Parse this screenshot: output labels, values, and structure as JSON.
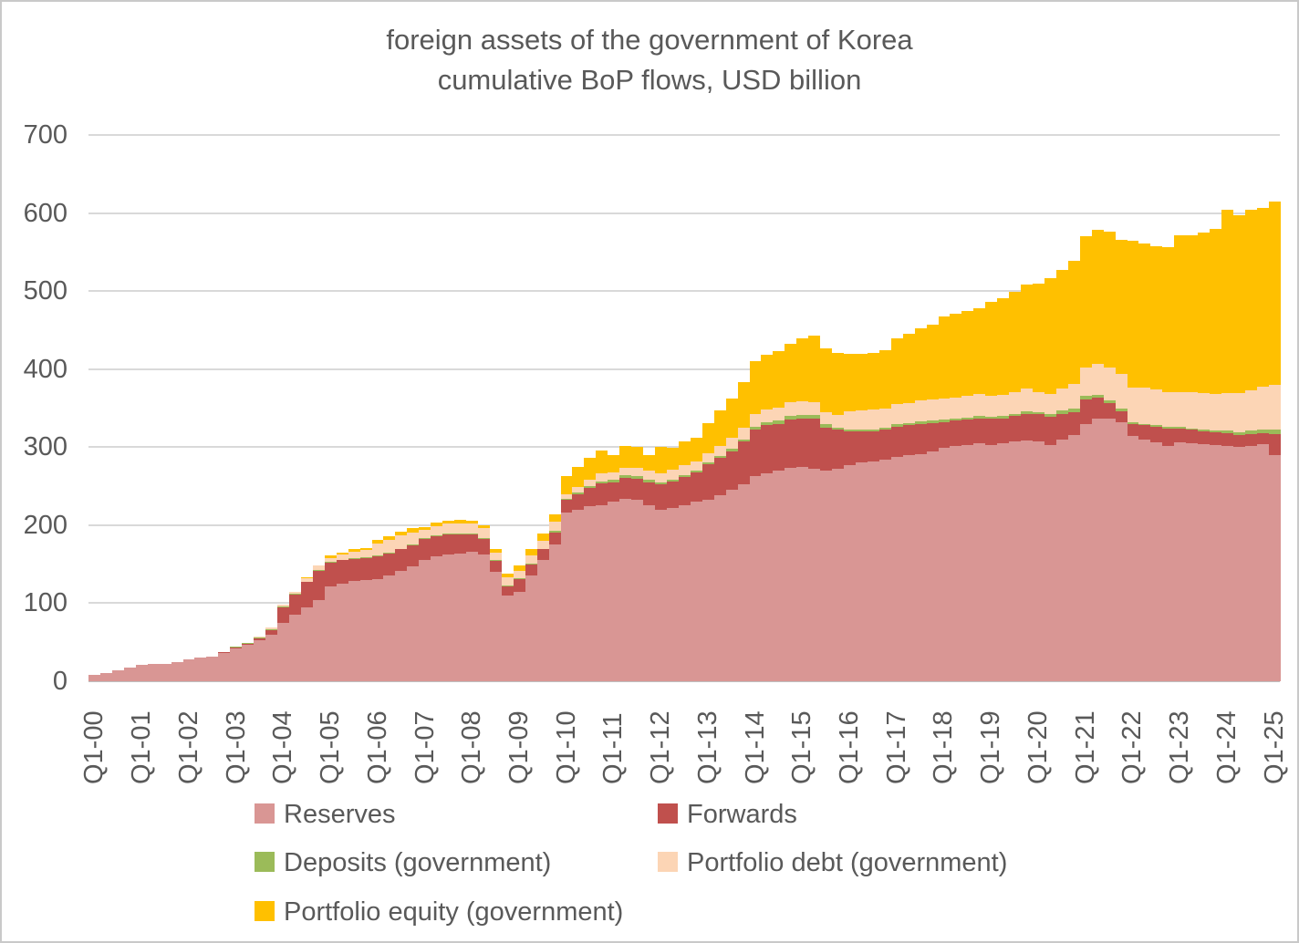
{
  "title": {
    "line1": "foreign assets of the government of Korea",
    "line2": "cumulative BoP flows, USD billion"
  },
  "colors": {
    "background": "#FFFFFF",
    "border": "#C9C9C9",
    "text": "#595959",
    "gridline": "#D9D9D9",
    "axis_line": "#BFBFBF"
  },
  "y_axis": {
    "tick_labels": [
      "0",
      "100",
      "200",
      "300",
      "400",
      "500",
      "600",
      "700"
    ],
    "min": 0,
    "max": 700
  },
  "x_axis": {
    "tick_labels": [
      "Q1-00",
      "Q1-01",
      "Q1-02",
      "Q1-03",
      "Q1-04",
      "Q1-05",
      "Q1-06",
      "Q1-07",
      "Q1-08",
      "Q1-09",
      "Q1-10",
      "Q1-11",
      "Q1-12",
      "Q1-13",
      "Q1-14",
      "Q1-15",
      "Q1-16",
      "Q1-17",
      "Q1-18",
      "Q1-19",
      "Q1-20",
      "Q1-21",
      "Q1-22",
      "Q1-23",
      "Q1-24",
      "Q1-25"
    ],
    "bars_per_tick": 4
  },
  "chart_data": {
    "type": "bar",
    "stacked": true,
    "title": "foreign assets of the government of Korea",
    "subtitle": "cumulative BoP flows, USD billion",
    "xlabel": "",
    "ylabel": "USD billion",
    "ylim": [
      0,
      700
    ],
    "grid": true,
    "legend_position": "bottom",
    "n_bars": 101,
    "x_start": "Q1-2000",
    "x_end": "Q1-2025",
    "x_frequency": "quarterly",
    "x_tick_labels": [
      "Q1-00",
      "Q1-01",
      "Q1-02",
      "Q1-03",
      "Q1-04",
      "Q1-05",
      "Q1-06",
      "Q1-07",
      "Q1-08",
      "Q1-09",
      "Q1-10",
      "Q1-11",
      "Q1-12",
      "Q1-13",
      "Q1-14",
      "Q1-15",
      "Q1-16",
      "Q1-17",
      "Q1-18",
      "Q1-19",
      "Q1-20",
      "Q1-21",
      "Q1-22",
      "Q1-23",
      "Q1-24",
      "Q1-25"
    ],
    "series": [
      {
        "name": "Reserves",
        "color": "#D99694",
        "values": [
          8,
          11,
          14,
          17,
          21,
          22,
          22,
          25,
          28,
          30,
          32,
          36,
          42,
          47,
          53,
          60,
          75,
          85,
          95,
          104,
          121,
          125,
          128,
          130,
          131,
          136,
          141,
          147,
          155,
          160,
          163,
          164,
          166,
          162,
          140,
          110,
          115,
          135,
          155,
          175,
          216,
          220,
          224,
          226,
          230,
          234,
          232,
          225,
          220,
          222,
          226,
          230,
          232,
          238,
          245,
          252,
          263,
          266,
          270,
          274,
          275,
          272,
          270,
          272,
          277,
          280,
          282,
          284,
          288,
          290,
          291,
          294,
          299,
          301,
          303,
          305,
          303,
          305,
          307,
          309,
          307,
          303,
          310,
          315,
          330,
          337,
          336,
          332,
          314,
          310,
          306,
          302,
          306,
          305,
          304,
          303,
          301,
          300,
          302,
          304,
          290
        ]
      },
      {
        "name": "Forwards",
        "color": "#C0504D",
        "values": [
          0,
          0,
          0,
          0,
          0,
          0,
          0,
          0,
          0,
          0,
          0,
          1,
          1,
          1,
          2,
          6,
          20,
          26,
          32,
          38,
          31,
          30,
          29,
          28,
          29,
          28,
          28,
          27,
          27,
          26,
          25,
          24,
          22,
          20,
          14,
          12,
          16,
          15,
          14,
          16,
          16,
          20,
          24,
          28,
          25,
          27,
          28,
          30,
          33,
          34,
          36,
          38,
          46,
          48,
          50,
          55,
          60,
          62,
          60,
          62,
          62,
          65,
          55,
          50,
          43,
          40,
          38,
          38,
          38,
          38,
          39,
          37,
          33,
          33,
          32,
          32,
          33,
          32,
          33,
          34,
          35,
          36,
          33,
          30,
          31,
          26,
          20,
          14,
          16,
          18,
          20,
          22,
          18,
          17,
          16,
          16,
          17,
          16,
          15,
          14,
          27
        ]
      },
      {
        "name": "Deposits (government)",
        "color": "#9BBB59",
        "values": [
          0,
          0,
          0,
          0,
          0,
          0,
          0,
          0,
          0,
          0,
          0,
          0,
          1,
          1,
          1,
          1,
          1,
          1,
          1,
          1,
          1,
          1,
          1,
          1,
          1,
          1,
          1,
          1,
          1,
          1,
          1,
          1,
          1,
          1,
          1,
          1,
          1,
          1,
          1,
          2,
          2,
          2,
          2,
          2,
          3,
          3,
          3,
          3,
          2,
          2,
          2,
          2,
          2,
          3,
          3,
          3,
          3,
          4,
          4,
          4,
          4,
          4,
          4,
          3,
          3,
          3,
          3,
          3,
          3,
          3,
          3,
          3,
          3,
          3,
          3,
          3,
          3,
          3,
          3,
          3,
          3,
          3,
          4,
          4,
          5,
          4,
          4,
          4,
          2,
          2,
          2,
          2,
          2,
          2,
          2,
          2,
          3,
          3,
          4,
          5,
          6
        ]
      },
      {
        "name": "Portfolio debt (government)",
        "color": "#FCD5B5",
        "values": [
          0,
          0,
          0,
          0,
          0,
          0,
          0,
          0,
          0,
          0,
          0,
          0,
          0,
          0,
          1,
          2,
          2,
          3,
          4,
          5,
          5,
          6,
          8,
          9,
          15,
          16,
          17,
          16,
          11,
          12,
          13,
          13,
          13,
          13,
          10,
          10,
          10,
          10,
          10,
          11,
          6,
          7,
          8,
          10,
          10,
          10,
          11,
          12,
          12,
          13,
          13,
          12,
          12,
          13,
          14,
          15,
          17,
          16,
          17,
          18,
          18,
          17,
          16,
          16,
          23,
          24,
          25,
          25,
          26,
          26,
          27,
          27,
          27,
          27,
          28,
          28,
          27,
          27,
          28,
          29,
          25,
          26,
          28,
          32,
          36,
          40,
          42,
          44,
          44,
          46,
          46,
          45,
          45,
          46,
          47,
          47,
          48,
          50,
          52,
          54,
          57
        ]
      },
      {
        "name": "Portfolio equity (government)",
        "color": "#FFC000",
        "values": [
          0,
          0,
          0,
          0,
          0,
          0,
          0,
          0,
          0,
          0,
          0,
          0,
          0,
          0,
          0,
          0,
          0,
          0,
          1,
          1,
          3,
          3,
          3,
          3,
          5,
          5,
          5,
          5,
          3,
          4,
          4,
          5,
          4,
          4,
          5,
          5,
          7,
          8,
          9,
          10,
          23,
          26,
          28,
          30,
          22,
          28,
          26,
          20,
          33,
          28,
          30,
          30,
          39,
          45,
          50,
          58,
          67,
          70,
          72,
          75,
          80,
          85,
          82,
          80,
          74,
          72,
          73,
          74,
          85,
          88,
          92,
          96,
          105,
          107,
          108,
          110,
          120,
          124,
          128,
          133,
          140,
          148,
          152,
          158,
          168,
          172,
          174,
          172,
          188,
          185,
          183,
          185,
          200,
          202,
          206,
          212,
          235,
          228,
          231,
          230,
          235
        ]
      }
    ]
  }
}
